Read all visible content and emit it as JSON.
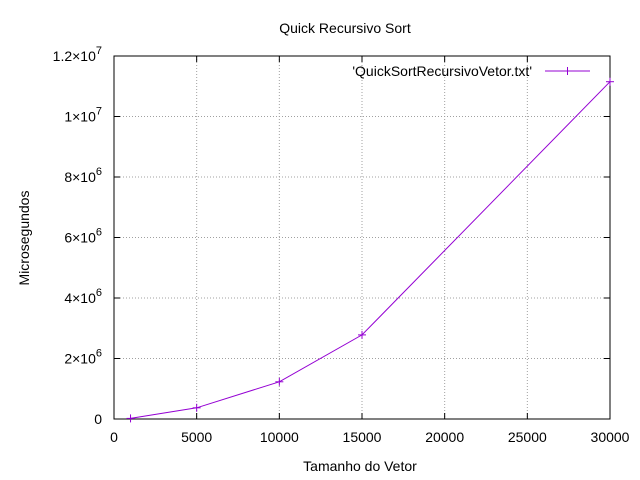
{
  "chart_data": {
    "type": "line",
    "title": "Quick Recursivo Sort",
    "xlabel": "Tamanho do Vetor",
    "ylabel": "Microsegundos",
    "xlim": [
      0,
      30000
    ],
    "ylim": [
      0,
      12000000
    ],
    "grid": true,
    "legend_position": "top-right",
    "x_ticks": [
      {
        "value": 0,
        "label": "0"
      },
      {
        "value": 5000,
        "label": "5000"
      },
      {
        "value": 10000,
        "label": "10000"
      },
      {
        "value": 15000,
        "label": "15000"
      },
      {
        "value": 20000,
        "label": "20000"
      },
      {
        "value": 25000,
        "label": "25000"
      },
      {
        "value": 30000,
        "label": "30000"
      }
    ],
    "y_ticks": [
      {
        "value": 0,
        "mantissa": "0",
        "exponent": ""
      },
      {
        "value": 2000000,
        "mantissa": "2×10",
        "exponent": "6"
      },
      {
        "value": 4000000,
        "mantissa": "4×10",
        "exponent": "6"
      },
      {
        "value": 6000000,
        "mantissa": "6×10",
        "exponent": "6"
      },
      {
        "value": 8000000,
        "mantissa": "8×10",
        "exponent": "6"
      },
      {
        "value": 10000000,
        "mantissa": "1×10",
        "exponent": "7"
      },
      {
        "value": 12000000,
        "mantissa": "1.2×10",
        "exponent": "7"
      }
    ],
    "series": [
      {
        "name": "'QuickSortRecursivoVetor.txt'",
        "color": "#9400d3",
        "x": [
          1000,
          5000,
          10000,
          15000,
          30000
        ],
        "y": [
          20000,
          370000,
          1230000,
          2780000,
          11150000
        ]
      }
    ]
  }
}
